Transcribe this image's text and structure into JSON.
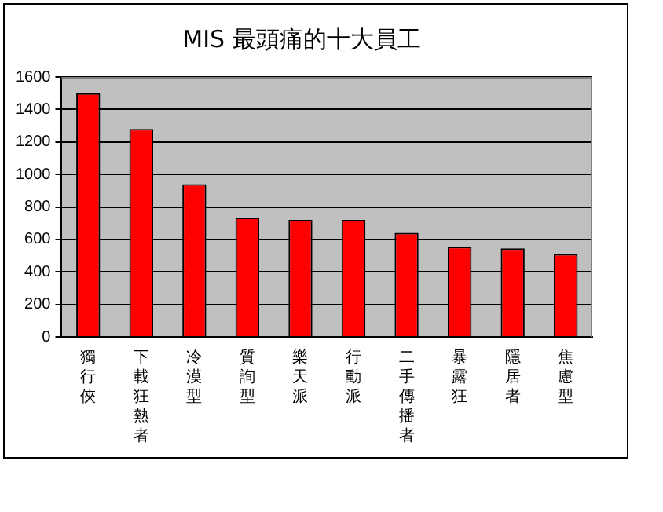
{
  "chart_data": {
    "type": "bar",
    "title": "MIS 最頭痛的十大員工",
    "categories": [
      "獨行俠",
      "下載狂熱者",
      "冷漠型",
      "質詢型",
      "樂天派",
      "行動派",
      "二手傳播者",
      "暴露狂",
      "隱居者",
      "焦慮型"
    ],
    "values": [
      1500,
      1280,
      940,
      735,
      720,
      720,
      640,
      555,
      545,
      510
    ],
    "color": "#ff0000",
    "ylim": [
      0,
      1600
    ],
    "yticks": [
      0,
      200,
      400,
      600,
      800,
      1000,
      1200,
      1400,
      1600
    ],
    "grid": "y"
  }
}
